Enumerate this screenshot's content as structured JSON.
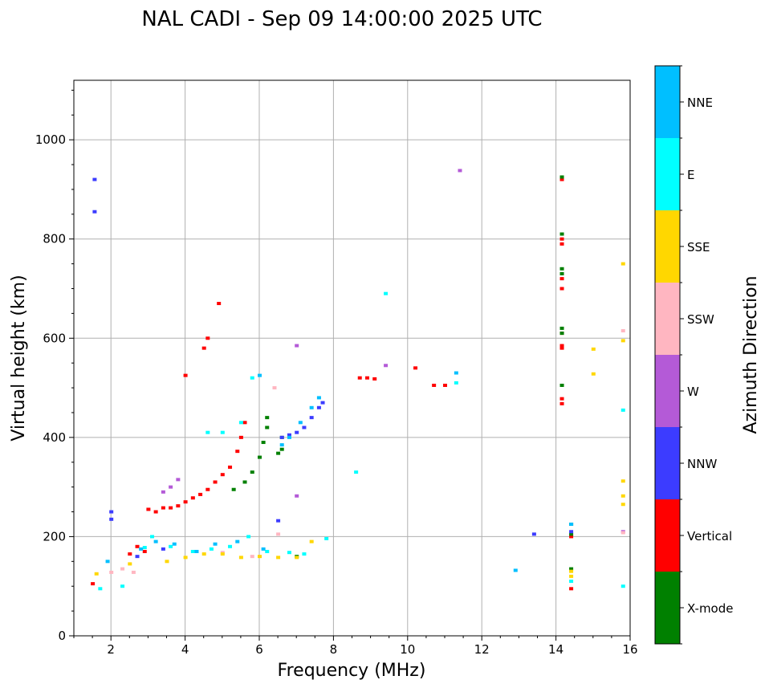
{
  "chart_data": {
    "type": "scatter",
    "title": "NAL CADI - Sep 09 14:00:00 2025 UTC",
    "xlabel": "Frequency (MHz)",
    "ylabel": "Virtual height (km)",
    "xlim": [
      1,
      16
    ],
    "ylim": [
      0,
      1120
    ],
    "xticks": [
      2,
      4,
      6,
      8,
      10,
      12,
      14,
      16
    ],
    "yticks": [
      0,
      200,
      400,
      600,
      800,
      1000
    ],
    "grid": true,
    "colorbar": {
      "label": "Azimuth Direction",
      "categories": [
        {
          "name": "X-mode",
          "color": "#008000"
        },
        {
          "name": "Vertical",
          "color": "#ff0000"
        },
        {
          "name": "NNW",
          "color": "#3c3cff"
        },
        {
          "name": "W",
          "color": "#b45ad7"
        },
        {
          "name": "SSW",
          "color": "#ffb6c1"
        },
        {
          "name": "SSE",
          "color": "#ffd700"
        },
        {
          "name": "E",
          "color": "#00ffff"
        },
        {
          "name": "NNE",
          "color": "#00bfff"
        }
      ]
    },
    "series": [
      {
        "name": "Vertical",
        "color": "#ff0000",
        "points": [
          [
            1.5,
            105
          ],
          [
            2.5,
            165
          ],
          [
            2.7,
            180
          ],
          [
            2.9,
            170
          ],
          [
            3.0,
            255
          ],
          [
            3.2,
            250
          ],
          [
            3.4,
            258
          ],
          [
            3.6,
            258
          ],
          [
            3.8,
            262
          ],
          [
            4.0,
            270
          ],
          [
            4.2,
            278
          ],
          [
            4.4,
            285
          ],
          [
            4.6,
            295
          ],
          [
            4.8,
            310
          ],
          [
            5.0,
            325
          ],
          [
            5.2,
            340
          ],
          [
            5.4,
            372
          ],
          [
            5.5,
            400
          ],
          [
            5.6,
            430
          ],
          [
            4.0,
            525
          ],
          [
            4.5,
            580
          ],
          [
            4.6,
            600
          ],
          [
            4.9,
            670
          ],
          [
            8.7,
            520
          ],
          [
            8.9,
            520
          ],
          [
            9.1,
            518
          ],
          [
            10.2,
            540
          ],
          [
            10.7,
            505
          ],
          [
            11.0,
            505
          ],
          [
            14.15,
            920
          ],
          [
            14.15,
            800
          ],
          [
            14.15,
            790
          ],
          [
            14.15,
            720
          ],
          [
            14.15,
            700
          ],
          [
            14.15,
            610
          ],
          [
            14.15,
            585
          ],
          [
            14.15,
            580
          ],
          [
            14.15,
            478
          ],
          [
            14.15,
            468
          ],
          [
            14.4,
            95
          ],
          [
            14.4,
            200
          ]
        ]
      },
      {
        "name": "X-mode",
        "color": "#008000",
        "points": [
          [
            5.3,
            295
          ],
          [
            5.6,
            310
          ],
          [
            5.8,
            330
          ],
          [
            6.0,
            360
          ],
          [
            6.1,
            390
          ],
          [
            6.2,
            420
          ],
          [
            6.2,
            440
          ],
          [
            6.5,
            368
          ],
          [
            6.6,
            376
          ],
          [
            6.6,
            400
          ],
          [
            7.0,
            160
          ],
          [
            14.15,
            925
          ],
          [
            14.15,
            810
          ],
          [
            14.15,
            740
          ],
          [
            14.15,
            730
          ],
          [
            14.15,
            620
          ],
          [
            14.15,
            610
          ],
          [
            14.15,
            505
          ],
          [
            14.4,
            225
          ],
          [
            14.4,
            205
          ],
          [
            14.4,
            135
          ]
        ]
      },
      {
        "name": "NNW",
        "color": "#3c3cff",
        "points": [
          [
            1.55,
            920
          ],
          [
            1.55,
            855
          ],
          [
            2.0,
            250
          ],
          [
            2.0,
            235
          ],
          [
            2.7,
            160
          ],
          [
            3.4,
            175
          ],
          [
            6.6,
            400
          ],
          [
            6.8,
            405
          ],
          [
            7.0,
            410
          ],
          [
            7.2,
            420
          ],
          [
            7.4,
            440
          ],
          [
            7.6,
            460
          ],
          [
            7.7,
            470
          ],
          [
            6.5,
            232
          ],
          [
            13.4,
            205
          ],
          [
            14.4,
            210
          ]
        ]
      },
      {
        "name": "W",
        "color": "#b45ad7",
        "points": [
          [
            3.4,
            290
          ],
          [
            3.6,
            300
          ],
          [
            3.8,
            315
          ],
          [
            7.0,
            585
          ],
          [
            7.0,
            282
          ],
          [
            11.4,
            938
          ],
          [
            9.4,
            545
          ],
          [
            15.8,
            210
          ]
        ]
      },
      {
        "name": "SSW",
        "color": "#ffb6c1",
        "points": [
          [
            2.0,
            128
          ],
          [
            2.3,
            135
          ],
          [
            2.6,
            128
          ],
          [
            5.0,
            168
          ],
          [
            5.8,
            160
          ],
          [
            6.5,
            205
          ],
          [
            6.4,
            500
          ],
          [
            15.8,
            615
          ],
          [
            15.8,
            208
          ]
        ]
      },
      {
        "name": "SSE",
        "color": "#ffd700",
        "points": [
          [
            1.6,
            125
          ],
          [
            2.5,
            145
          ],
          [
            3.5,
            150
          ],
          [
            4.0,
            158
          ],
          [
            4.5,
            165
          ],
          [
            5.0,
            165
          ],
          [
            5.5,
            158
          ],
          [
            6.0,
            160
          ],
          [
            6.5,
            158
          ],
          [
            7.0,
            158
          ],
          [
            7.4,
            190
          ],
          [
            14.4,
            120
          ],
          [
            14.4,
            130
          ],
          [
            15.0,
            578
          ],
          [
            15.0,
            528
          ],
          [
            15.8,
            750
          ],
          [
            15.8,
            595
          ],
          [
            15.8,
            312
          ],
          [
            15.8,
            282
          ],
          [
            15.8,
            265
          ]
        ]
      },
      {
        "name": "E",
        "color": "#00ffff",
        "points": [
          [
            1.7,
            95
          ],
          [
            2.3,
            100
          ],
          [
            2.9,
            178
          ],
          [
            3.1,
            200
          ],
          [
            3.6,
            180
          ],
          [
            4.2,
            170
          ],
          [
            4.7,
            175
          ],
          [
            5.2,
            180
          ],
          [
            5.7,
            200
          ],
          [
            6.2,
            170
          ],
          [
            6.8,
            168
          ],
          [
            7.2,
            165
          ],
          [
            4.6,
            410
          ],
          [
            5.0,
            410
          ],
          [
            5.5,
            430
          ],
          [
            5.8,
            520
          ],
          [
            7.8,
            196
          ],
          [
            8.6,
            330
          ],
          [
            11.3,
            510
          ],
          [
            9.4,
            690
          ],
          [
            14.4,
            110
          ],
          [
            15.8,
            455
          ],
          [
            15.8,
            100
          ]
        ]
      },
      {
        "name": "NNE",
        "color": "#00bfff",
        "points": [
          [
            1.9,
            150
          ],
          [
            2.8,
            175
          ],
          [
            3.2,
            190
          ],
          [
            3.7,
            185
          ],
          [
            4.3,
            170
          ],
          [
            4.8,
            185
          ],
          [
            5.4,
            190
          ],
          [
            6.1,
            175
          ],
          [
            6.6,
            385
          ],
          [
            6.8,
            400
          ],
          [
            7.1,
            430
          ],
          [
            7.4,
            460
          ],
          [
            7.6,
            480
          ],
          [
            6.0,
            525
          ],
          [
            11.3,
            530
          ],
          [
            12.9,
            132
          ],
          [
            14.4,
            225
          ]
        ]
      }
    ]
  }
}
